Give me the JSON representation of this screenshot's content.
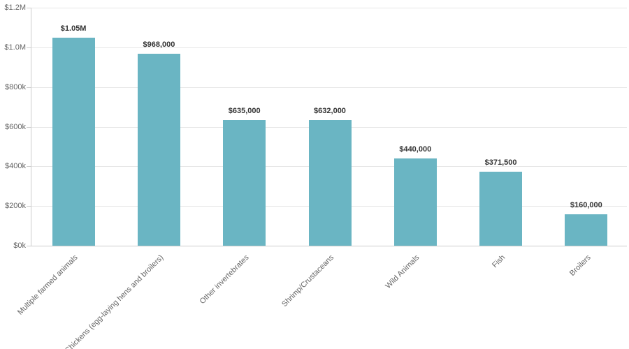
{
  "chart_data": {
    "type": "bar",
    "categories": [
      "Multiple farmed animals",
      "Chickens (egg-laying hens and broilers)",
      "Other invertebrates",
      "Shrimp/Crustaceans",
      "Wild Animals",
      "Fish",
      "Broilers"
    ],
    "values": [
      1050000,
      968000,
      635000,
      632000,
      440000,
      371500,
      160000
    ],
    "value_labels": [
      "$1.05M",
      "$968,000",
      "$635,000",
      "$632,000",
      "$440,000",
      "$371,500",
      "$160,000"
    ],
    "ylim": [
      0,
      1200000
    ],
    "yticks": [
      {
        "value": 0,
        "label": "$0k"
      },
      {
        "value": 200000,
        "label": "$200k"
      },
      {
        "value": 400000,
        "label": "$400k"
      },
      {
        "value": 600000,
        "label": "$600k"
      },
      {
        "value": 800000,
        "label": "$800k"
      },
      {
        "value": 1000000,
        "label": "$1.0M"
      },
      {
        "value": 1200000,
        "label": "$1.2M"
      }
    ],
    "grid": true,
    "legend": "none",
    "colors": {
      "bar": "#6ab5c3",
      "gridline": "#e6e6e6",
      "axis_line": "#cccccc",
      "axis_label": "#666666",
      "value_label": "#333333"
    }
  }
}
